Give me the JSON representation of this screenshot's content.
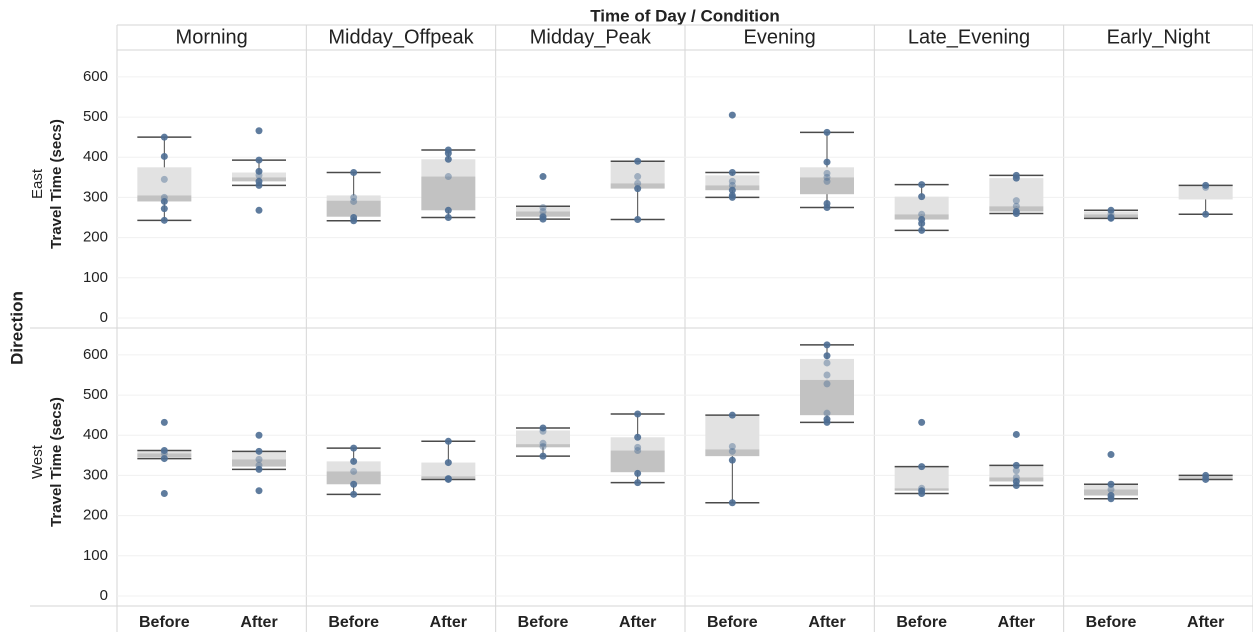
{
  "chart_data": {
    "type": "boxplot",
    "title": "Time of Day / Condition",
    "row_header": "Direction",
    "columns": [
      "Morning",
      "Midday_Offpeak",
      "Midday_Peak",
      "Evening",
      "Late_Evening",
      "Early_Night"
    ],
    "categories": [
      "Before",
      "After"
    ],
    "ylim": [
      -25,
      667
    ],
    "yticks": [
      0,
      100,
      200,
      300,
      400,
      500,
      600
    ],
    "grid": true,
    "box_upper_color": "#e2e2e2",
    "box_lower_color": "#c2c2c2",
    "whisker_color": "#4a4a4a",
    "point_color": "#4e6e94",
    "rows": [
      {
        "name": "East",
        "axis_label": "Travel Time (secs)",
        "cells": [
          [
            {
              "whisker_low": 243,
              "q1": 290,
              "median": 305,
              "q3": 375,
              "whisker_high": 450,
              "points": [
                450,
                402,
                345,
                300,
                290,
                272,
                243
              ]
            },
            {
              "whisker_low": 330,
              "q1": 340,
              "median": 350,
              "q3": 362,
              "whisker_high": 393,
              "points": [
                466,
                393,
                365,
                355,
                340,
                330,
                268
              ]
            }
          ],
          [
            {
              "whisker_low": 242,
              "q1": 252,
              "median": 292,
              "q3": 305,
              "whisker_high": 362,
              "points": [
                362,
                300,
                290,
                250,
                242
              ]
            },
            {
              "whisker_low": 250,
              "q1": 268,
              "median": 352,
              "q3": 395,
              "whisker_high": 418,
              "points": [
                418,
                410,
                395,
                352,
                268,
                250
              ]
            }
          ],
          [
            {
              "whisker_low": 246,
              "q1": 252,
              "median": 265,
              "q3": 278,
              "whisker_high": 278,
              "points": [
                352,
                275,
                265,
                252,
                246
              ]
            },
            {
              "whisker_low": 245,
              "q1": 322,
              "median": 335,
              "q3": 390,
              "whisker_high": 390,
              "points": [
                390,
                352,
                335,
                322,
                245
              ]
            }
          ],
          [
            {
              "whisker_low": 300,
              "q1": 318,
              "median": 330,
              "q3": 355,
              "whisker_high": 362,
              "points": [
                505,
                362,
                340,
                330,
                318,
                305,
                300
              ]
            },
            {
              "whisker_low": 275,
              "q1": 308,
              "median": 350,
              "q3": 375,
              "whisker_high": 462,
              "points": [
                462,
                388,
                360,
                350,
                340,
                285,
                275
              ]
            }
          ],
          [
            {
              "whisker_low": 218,
              "q1": 245,
              "median": 258,
              "q3": 302,
              "whisker_high": 332,
              "points": [
                332,
                302,
                258,
                245,
                235,
                218
              ]
            },
            {
              "whisker_low": 260,
              "q1": 265,
              "median": 278,
              "q3": 348,
              "whisker_high": 355,
              "points": [
                355,
                348,
                292,
                278,
                265,
                260
              ]
            }
          ],
          [
            {
              "whisker_low": 248,
              "q1": 250,
              "median": 258,
              "q3": 265,
              "whisker_high": 268,
              "points": [
                268,
                258,
                250,
                248
              ]
            },
            {
              "whisker_low": 258,
              "q1": 295,
              "median": 295,
              "q3": 330,
              "whisker_high": 330,
              "points": [
                330,
                325,
                258
              ]
            }
          ]
        ]
      },
      {
        "name": "West",
        "axis_label": "Travel Time (secs)",
        "cells": [
          [
            {
              "whisker_low": 342,
              "q1": 345,
              "median": 355,
              "q3": 360,
              "whisker_high": 362,
              "points": [
                432,
                362,
                355,
                342,
                255
              ]
            },
            {
              "whisker_low": 315,
              "q1": 322,
              "median": 340,
              "q3": 360,
              "whisker_high": 360,
              "points": [
                400,
                360,
                340,
                325,
                315,
                262
              ]
            }
          ],
          [
            {
              "whisker_low": 253,
              "q1": 278,
              "median": 310,
              "q3": 335,
              "whisker_high": 368,
              "points": [
                368,
                335,
                310,
                278,
                253
              ]
            },
            {
              "whisker_low": 290,
              "q1": 292,
              "median": 298,
              "q3": 332,
              "whisker_high": 385,
              "points": [
                385,
                332,
                292,
                290
              ]
            }
          ],
          [
            {
              "whisker_low": 348,
              "q1": 370,
              "median": 378,
              "q3": 412,
              "whisker_high": 418,
              "points": [
                418,
                410,
                380,
                372,
                348
              ]
            },
            {
              "whisker_low": 282,
              "q1": 308,
              "median": 362,
              "q3": 395,
              "whisker_high": 453,
              "points": [
                453,
                395,
                370,
                362,
                305,
                282
              ]
            }
          ],
          [
            {
              "whisker_low": 232,
              "q1": 348,
              "median": 365,
              "q3": 448,
              "whisker_high": 450,
              "points": [
                450,
                372,
                360,
                338,
                232
              ]
            },
            {
              "whisker_low": 432,
              "q1": 450,
              "median": 538,
              "q3": 590,
              "whisker_high": 625,
              "points": [
                625,
                598,
                580,
                550,
                528,
                455,
                440,
                432
              ]
            }
          ],
          [
            {
              "whisker_low": 255,
              "q1": 262,
              "median": 268,
              "q3": 322,
              "whisker_high": 322,
              "points": [
                432,
                322,
                268,
                262,
                255
              ]
            },
            {
              "whisker_low": 275,
              "q1": 285,
              "median": 295,
              "q3": 325,
              "whisker_high": 325,
              "points": [
                402,
                325,
                312,
                295,
                285,
                275
              ]
            }
          ],
          [
            {
              "whisker_low": 242,
              "q1": 250,
              "median": 265,
              "q3": 278,
              "whisker_high": 278,
              "points": [
                352,
                278,
                265,
                250,
                242
              ]
            },
            {
              "whisker_low": 290,
              "q1": 292,
              "median": 295,
              "q3": 300,
              "whisker_high": 300,
              "points": [
                300,
                295,
                290
              ]
            }
          ]
        ]
      }
    ]
  }
}
